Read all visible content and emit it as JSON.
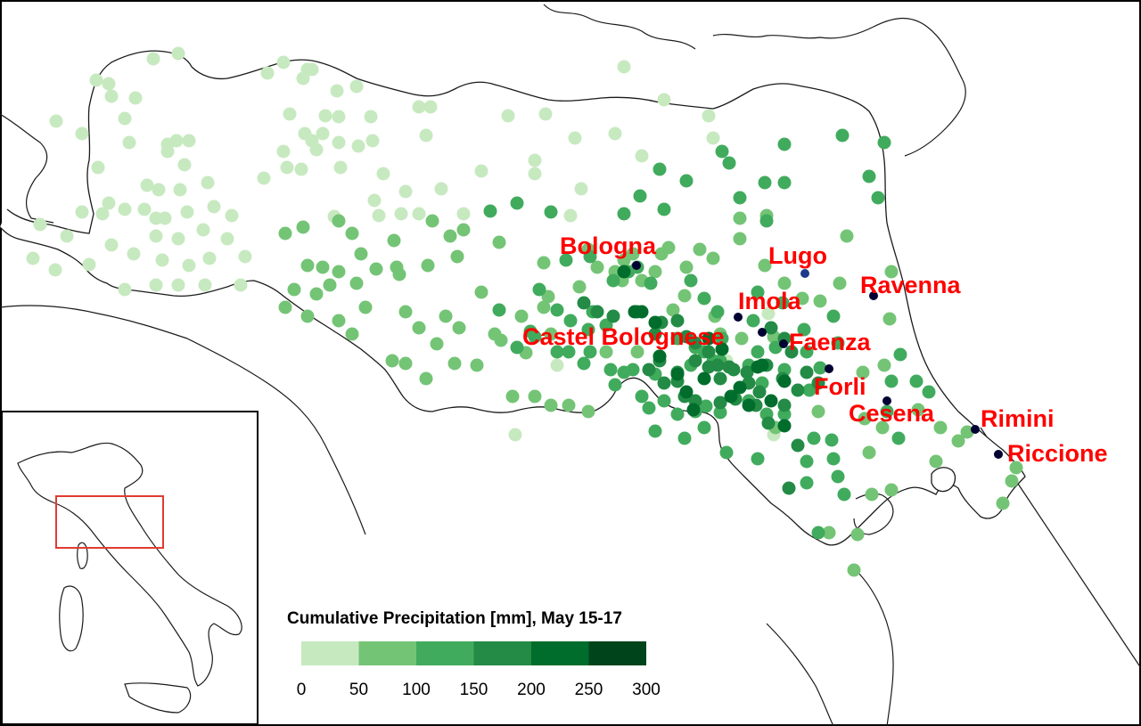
{
  "legend": {
    "title": "Cumulative Precipitation [mm], May 15-17",
    "bins": [
      {
        "min": 0,
        "max": 50,
        "color": "#c7e9c0"
      },
      {
        "min": 50,
        "max": 100,
        "color": "#74c476"
      },
      {
        "min": 100,
        "max": 150,
        "color": "#41ab5d"
      },
      {
        "min": 150,
        "max": 200,
        "color": "#238b45"
      },
      {
        "min": 200,
        "max": 250,
        "color": "#006d2c"
      },
      {
        "min": 250,
        "max": 300,
        "color": "#00441b"
      }
    ],
    "ticks": [
      "0",
      "50",
      "100",
      "150",
      "200",
      "250",
      "300"
    ]
  },
  "cities": [
    {
      "name": "Bologna",
      "marker_color": "#000033"
    },
    {
      "name": "Lugo",
      "marker_color": "#1f3a8a"
    },
    {
      "name": "Ravenna",
      "marker_color": "#000033"
    },
    {
      "name": "Imola",
      "marker_color": "#000033"
    },
    {
      "name": "Castel Bolognese",
      "marker_color": "#000033"
    },
    {
      "name": "Faenza",
      "marker_color": "#000033"
    },
    {
      "name": "Forli",
      "marker_color": "#000033"
    },
    {
      "name": "Cesena",
      "marker_color": "#000033"
    },
    {
      "name": "Rimini",
      "marker_color": "#000033"
    },
    {
      "name": "Riccione",
      "marker_color": "#000033"
    }
  ],
  "city_labels": [
    "Bologna",
    "Lugo",
    "Ravenna",
    "Imola",
    "Castel Bolognese",
    "Faenza",
    "Forli",
    "Cesena",
    "Rimini",
    "Riccione"
  ],
  "inset": {
    "name": "italy-overview",
    "highlight_color": "#e03c31"
  }
}
